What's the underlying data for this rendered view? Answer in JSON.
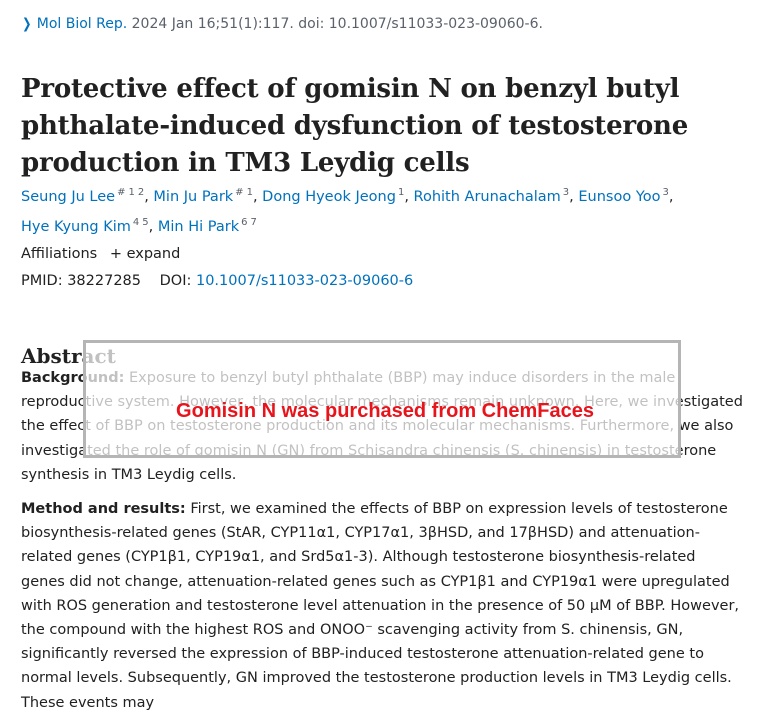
{
  "citation": {
    "chevron": "chevron-right-icon",
    "journal": "Mol Biol Rep.",
    "rest": "2024 Jan 16;51(1):117. doi: 10.1007/s11033-023-09060-6."
  },
  "title": "Protective effect of gomisin N on benzyl butyl phthalate-induced dysfunction of testosterone production in TM3 Leydig cells",
  "authors": [
    {
      "name": "Seung Ju Lee",
      "sup": [
        "#",
        "1",
        "2"
      ]
    },
    {
      "name": "Min Ju Park",
      "sup": [
        "#",
        "1"
      ]
    },
    {
      "name": "Dong Hyeok Jeong",
      "sup": [
        "1"
      ]
    },
    {
      "name": "Rohith Arunachalam",
      "sup": [
        "3"
      ]
    },
    {
      "name": "Eunsoo Yoo",
      "sup": [
        "3"
      ]
    },
    {
      "name": "Hye Kyung Kim",
      "sup": [
        "4",
        "5"
      ]
    },
    {
      "name": "Min Hi Park",
      "sup": [
        "6",
        "7"
      ]
    }
  ],
  "affiliations": {
    "label": "Affiliations",
    "expand": "+ expand"
  },
  "ids": {
    "pmid_label": "PMID:",
    "pmid": "38227285",
    "doi_label": "DOI:",
    "doi": "10.1007/s11033-023-09060-6"
  },
  "abstract": {
    "heading": "Abstract",
    "background_label": "Background:",
    "background_text": "Exposure to benzyl butyl phthalate (BBP) may induce disorders in the male reproductive system. However, the molecular mechanisms remain unknown. Here, we investigated the effect of BBP on testosterone production and its molecular mechanisms. Furthermore, we also investigated the role of gomisin N (GN) from Schisandra chinensis (S. chinensis) in testosterone synthesis in TM3 Leydig cells.",
    "methods_label": "Method and results:",
    "methods_text": "First, we examined the effects of BBP on expression levels of testosterone biosynthesis-related genes (StAR, CYP11α1, CYP17α1, 3βHSD, and 17βHSD) and attenuation-related genes (CYP1β1, CYP19α1, and Srd5α1-3). Although testosterone biosynthesis-related genes did not change, attenuation-related genes such as CYP1β1 and CYP19α1 were upregulated with ROS generation and testosterone level attenuation in the presence of 50 μM of BBP. However, the compound with the highest ROS and ONOO⁻ scavenging activity from S. chinensis, GN, significantly reversed the expression of BBP-induced testosterone attenuation-related gene to normal levels. Subsequently, GN improved the testosterone production levels in TM3 Leydig cells. These events may"
  },
  "overlay": {
    "text": "Gomisin N was purchased from ChemFaces",
    "text_color": "#e8141b"
  },
  "colors": {
    "link": "#0071bc",
    "text": "#212121"
  }
}
